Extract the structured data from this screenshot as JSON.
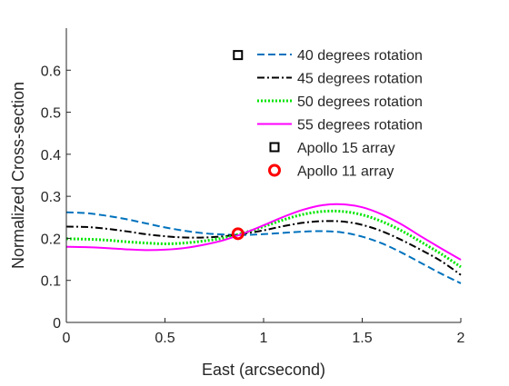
{
  "chart_data": {
    "type": "line",
    "title": "",
    "xlabel": "East (arcsecond)",
    "ylabel": "Normalized Cross-section",
    "xlim": [
      0,
      2
    ],
    "ylim": [
      0,
      0.7
    ],
    "xticks": [
      0,
      0.5,
      1,
      1.5,
      2
    ],
    "xtick_labels": [
      "0",
      "0.5",
      "1",
      "1.5",
      "2"
    ],
    "yticks": [
      0,
      0.1,
      0.2,
      0.3,
      0.4,
      0.5,
      0.6
    ],
    "ytick_labels": [
      "0",
      "0.1",
      "0.2",
      "0.3",
      "0.4",
      "0.5",
      "0.6"
    ],
    "grid": false,
    "legend_position": "top-right",
    "series": [
      {
        "name": "40 degrees rotation",
        "style": "dashed",
        "color": "#0072BD",
        "x": [
          0,
          0.1,
          0.2,
          0.3,
          0.4,
          0.5,
          0.6,
          0.7,
          0.8,
          0.9,
          1.0,
          1.1,
          1.2,
          1.3,
          1.4,
          1.5,
          1.6,
          1.7,
          1.8,
          1.9,
          2.0
        ],
        "y": [
          0.262,
          0.26,
          0.254,
          0.246,
          0.236,
          0.226,
          0.218,
          0.212,
          0.209,
          0.208,
          0.21,
          0.213,
          0.216,
          0.217,
          0.214,
          0.204,
          0.188,
          0.166,
          0.141,
          0.116,
          0.093
        ]
      },
      {
        "name": "45 degrees rotation",
        "style": "dashdot",
        "color": "#000000",
        "x": [
          0,
          0.1,
          0.2,
          0.3,
          0.4,
          0.5,
          0.6,
          0.7,
          0.8,
          0.9,
          1.0,
          1.1,
          1.2,
          1.3,
          1.4,
          1.5,
          1.6,
          1.7,
          1.8,
          1.9,
          2.0
        ],
        "y": [
          0.228,
          0.227,
          0.223,
          0.217,
          0.21,
          0.205,
          0.202,
          0.202,
          0.205,
          0.211,
          0.219,
          0.229,
          0.237,
          0.241,
          0.24,
          0.232,
          0.217,
          0.196,
          0.172,
          0.146,
          0.113
        ]
      },
      {
        "name": "50 degrees rotation",
        "style": "dotted",
        "color": "#00E600",
        "x": [
          0,
          0.1,
          0.2,
          0.3,
          0.4,
          0.5,
          0.6,
          0.7,
          0.8,
          0.9,
          1.0,
          1.1,
          1.2,
          1.3,
          1.4,
          1.5,
          1.6,
          1.7,
          1.8,
          1.9,
          2.0
        ],
        "y": [
          0.199,
          0.198,
          0.196,
          0.192,
          0.189,
          0.187,
          0.189,
          0.194,
          0.201,
          0.213,
          0.228,
          0.244,
          0.257,
          0.264,
          0.264,
          0.256,
          0.24,
          0.218,
          0.191,
          0.163,
          0.132
        ]
      },
      {
        "name": "55 degrees rotation",
        "style": "solid",
        "color": "#FF00FF",
        "x": [
          0,
          0.1,
          0.2,
          0.3,
          0.4,
          0.5,
          0.6,
          0.7,
          0.8,
          0.9,
          1.0,
          1.1,
          1.2,
          1.3,
          1.4,
          1.5,
          1.6,
          1.7,
          1.8,
          1.9,
          2.0
        ],
        "y": [
          0.18,
          0.179,
          0.177,
          0.174,
          0.172,
          0.173,
          0.177,
          0.185,
          0.196,
          0.212,
          0.231,
          0.251,
          0.268,
          0.279,
          0.281,
          0.274,
          0.257,
          0.233,
          0.204,
          0.176,
          0.149
        ]
      },
      {
        "name": "Apollo 15 array",
        "style": "marker-square",
        "color": "#000000",
        "x": [
          0.87
        ],
        "y": [
          0.636
        ]
      },
      {
        "name": "Apollo 11 array",
        "style": "marker-circle",
        "color": "#FF0000",
        "x": [
          0.87
        ],
        "y": [
          0.211
        ]
      }
    ]
  }
}
